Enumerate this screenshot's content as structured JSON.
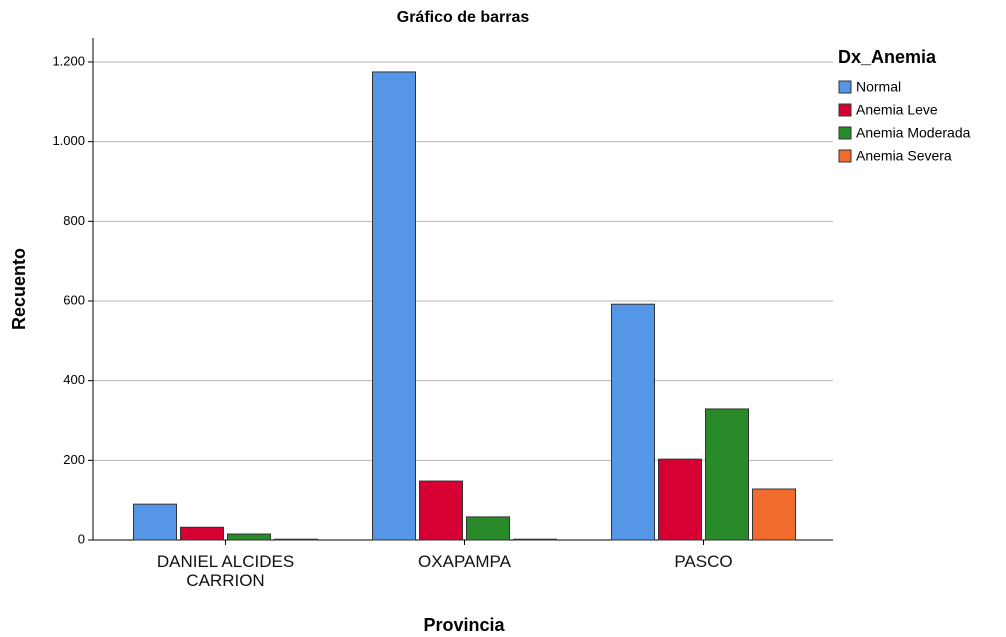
{
  "chart_data": {
    "type": "bar",
    "title": "Gráfico de barras",
    "x_label": "Provincia",
    "y_label": "Recuento",
    "categories": [
      "DANIEL ALCIDES CARRION",
      "OXAPAMPA",
      "PASCO"
    ],
    "legend_title": "Dx_Anemia",
    "legend": "right",
    "series": [
      {
        "name": "Normal",
        "color": "#5596e6",
        "values": [
          90,
          1175,
          592
        ]
      },
      {
        "name": "Anemia Leve",
        "color": "#d70032",
        "values": [
          32,
          148,
          203
        ]
      },
      {
        "name": "Anemia Moderada",
        "color": "#298a2a",
        "values": [
          15,
          58,
          329
        ]
      },
      {
        "name": "Anemia Severa",
        "color": "#f26b2e",
        "values": [
          2,
          2,
          128
        ]
      }
    ],
    "ylim": [
      0,
      1200
    ],
    "yticks": [
      0,
      200,
      400,
      600,
      800,
      {
        "value": 1000,
        "label": "1.000"
      },
      {
        "value": 1200,
        "label": "1.200"
      }
    ],
    "grid": true
  }
}
